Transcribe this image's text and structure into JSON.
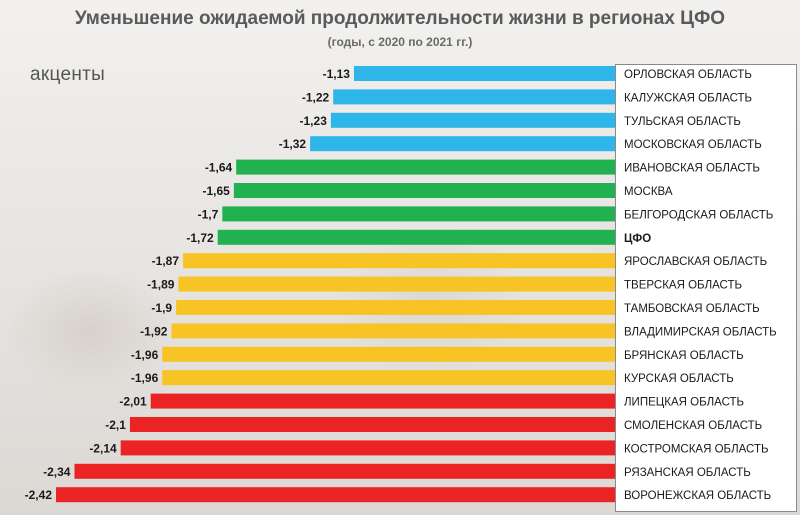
{
  "title": "Уменьшение ожидаемой продолжительности жизни в регионах ЦФО",
  "subtitle": "(годы, с 2020 по 2021 гг.)",
  "logo_text": "акценты",
  "colors": {
    "blue": "#2eb6ea",
    "green": "#21b151",
    "yellow": "#f7c325",
    "red": "#ea2424"
  },
  "chart_data": {
    "type": "bar",
    "orientation": "horizontal",
    "title": "Уменьшение ожидаемой продолжительности жизни в регионах ЦФО",
    "subtitle": "(годы, с 2020 по 2021 гг.)",
    "xlim": [
      -2.42,
      0
    ],
    "categories": [
      "ОРЛОВСКАЯ ОБЛАСТЬ",
      "КАЛУЖСКАЯ ОБЛАСТЬ",
      "ТУЛЬСКАЯ ОБЛАСТЬ",
      "МОСКОВСКАЯ ОБЛАСТЬ",
      "ИВАНОВСКАЯ ОБЛАСТЬ",
      "МОСКВА",
      "БЕЛГОРОДСКАЯ ОБЛАСТЬ",
      "ЦФО",
      "ЯРОСЛАВСКАЯ ОБЛАСТЬ",
      "ТВЕРСКАЯ ОБЛАСТЬ",
      "ТАМБОВСКАЯ ОБЛАСТЬ",
      "ВЛАДИМИРСКАЯ ОБЛАСТЬ",
      "БРЯНСКАЯ ОБЛАСТЬ",
      "КУРСКАЯ ОБЛАСТЬ",
      "ЛИПЕЦКАЯ ОБЛАСТЬ",
      "СМОЛЕНСКАЯ ОБЛАСТЬ",
      "КОСТРОМСКАЯ ОБЛАСТЬ",
      "РЯЗАНСКАЯ ОБЛАСТЬ",
      "ВОРОНЕЖСКАЯ ОБЛАСТЬ"
    ],
    "values": [
      -1.13,
      -1.22,
      -1.23,
      -1.32,
      -1.64,
      -1.65,
      -1.7,
      -1.72,
      -1.87,
      -1.89,
      -1.9,
      -1.92,
      -1.96,
      -1.96,
      -2.01,
      -2.1,
      -2.14,
      -2.34,
      -2.42
    ],
    "value_labels": [
      "-1,13",
      "-1,22",
      "-1,23",
      "-1,32",
      "-1,64",
      "-1,65",
      "-1,7",
      "-1,72",
      "-1,87",
      "-1,89",
      "-1,9",
      "-1,92",
      "-1,96",
      "-1,96",
      "-2,01",
      "-2,1",
      "-2,14",
      "-2,34",
      "-2,42"
    ],
    "bar_colors": [
      "blue",
      "blue",
      "blue",
      "blue",
      "green",
      "green",
      "green",
      "green",
      "yellow",
      "yellow",
      "yellow",
      "yellow",
      "yellow",
      "yellow",
      "red",
      "red",
      "red",
      "red",
      "red"
    ],
    "highlight_category": "ЦФО",
    "grid": false,
    "legend": "none"
  }
}
